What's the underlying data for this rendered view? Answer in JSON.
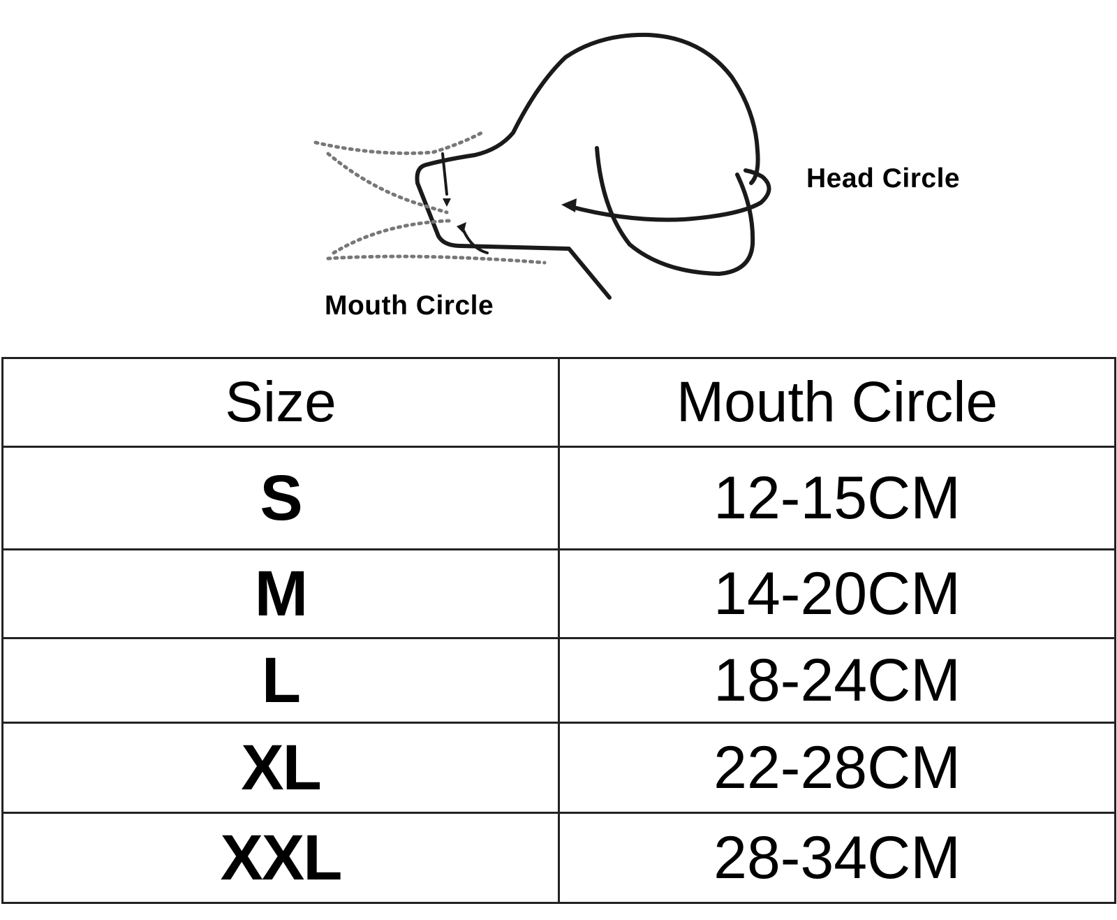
{
  "diagram": {
    "head_label": "Head Circle",
    "mouth_label": "Mouth Circle"
  },
  "table": {
    "headers": [
      "Size",
      "Mouth Circle"
    ],
    "rows": [
      {
        "size": "S",
        "mouth": "12-15CM"
      },
      {
        "size": "M",
        "mouth": "14-20CM"
      },
      {
        "size": "L",
        "mouth": "18-24CM"
      },
      {
        "size": "XL",
        "mouth": "22-28CM"
      },
      {
        "size": "XXL",
        "mouth": "28-34CM"
      }
    ]
  },
  "colors": {
    "line": "#1a1a1a",
    "dotted": "#777777",
    "border": "#222222"
  }
}
